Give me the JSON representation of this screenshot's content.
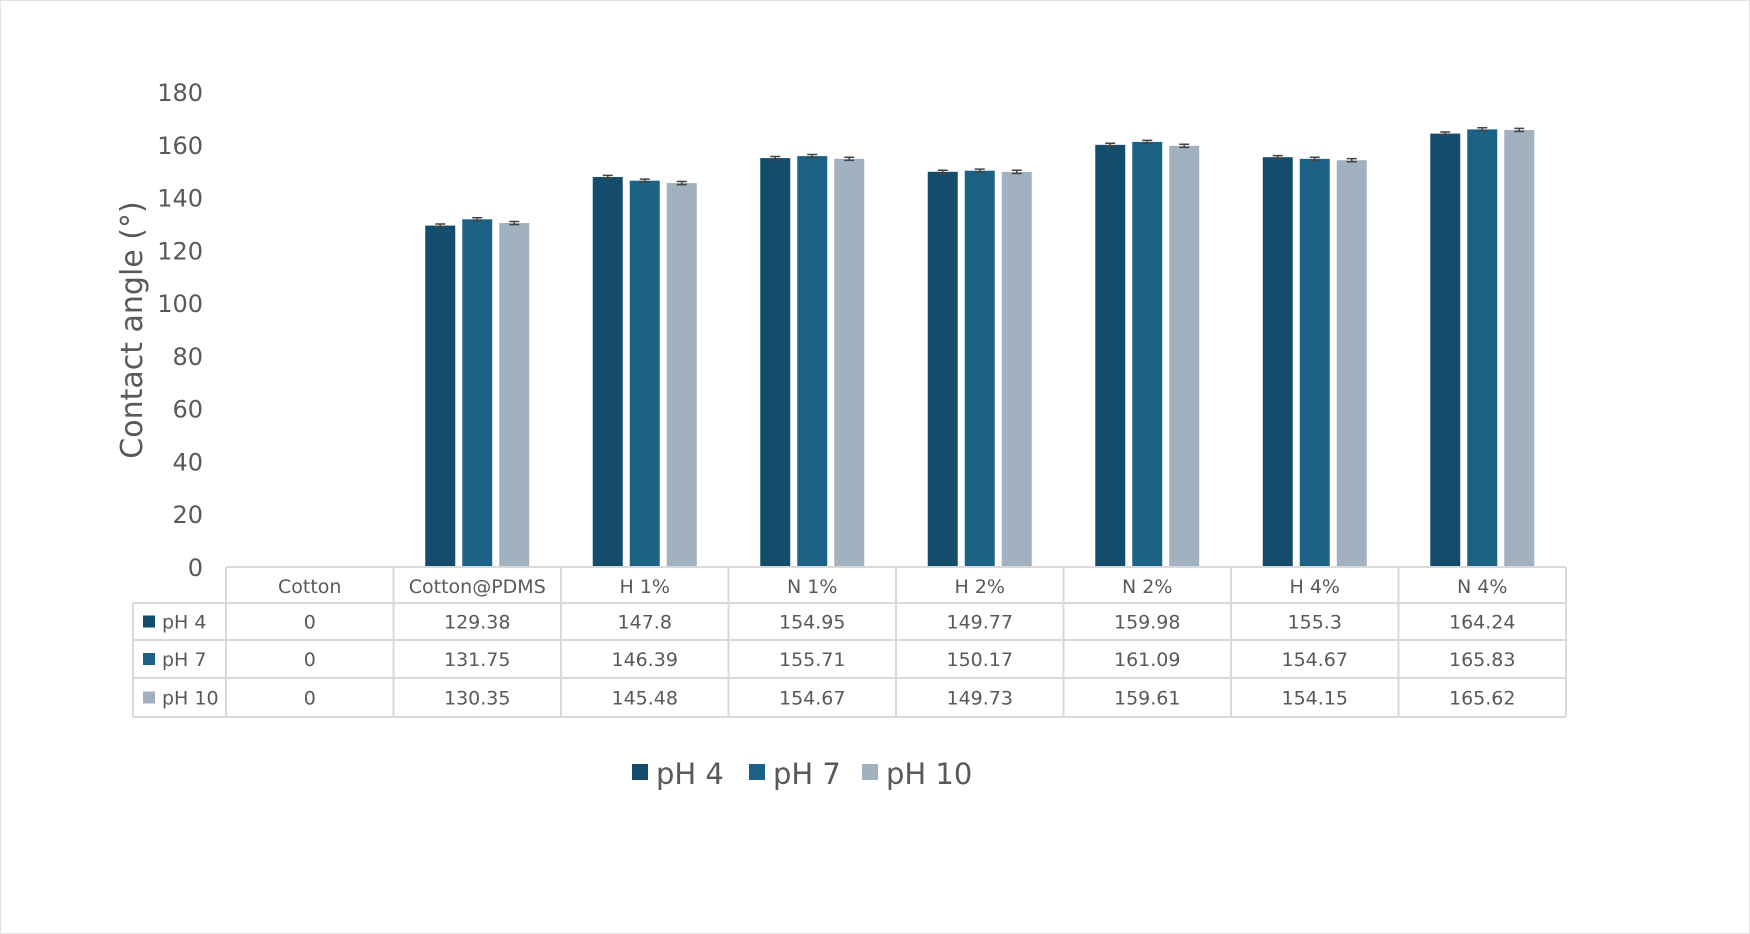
{
  "chart_data": {
    "type": "bar",
    "title": "",
    "xlabel": "",
    "ylabel": "Contact angle (°)",
    "ylim": [
      0,
      180
    ],
    "yticks": [
      0,
      20,
      40,
      60,
      80,
      100,
      120,
      140,
      160,
      180
    ],
    "grid": false,
    "legend_position": "bottom",
    "data_table": true,
    "error_bars": true,
    "categories": [
      "Cotton",
      "Cotton@PDMS",
      "H 1%",
      "N 1%",
      "H 2%",
      "N 2%",
      "H 4%",
      "N 4%"
    ],
    "series": [
      {
        "name": "pH 4",
        "color": "#134d6b",
        "values": [
          0,
          129.38,
          147.8,
          154.95,
          149.77,
          159.98,
          155.3,
          164.24
        ]
      },
      {
        "name": "pH 7",
        "color": "#1b6286",
        "values": [
          0,
          131.75,
          146.39,
          155.71,
          150.17,
          161.09,
          154.67,
          165.83
        ]
      },
      {
        "name": "pH 10",
        "color": "#a2b1bf",
        "values": [
          0,
          130.35,
          145.48,
          154.67,
          149.73,
          159.61,
          154.15,
          165.62
        ]
      }
    ],
    "table_values": [
      [
        "0",
        "129.38",
        "147.8",
        "154.95",
        "149.77",
        "159.98",
        "155.3",
        "164.24"
      ],
      [
        "0",
        "131.75",
        "146.39",
        "155.71",
        "150.17",
        "161.09",
        "154.67",
        "165.83"
      ],
      [
        "0",
        "130.35",
        "145.48",
        "154.67",
        "149.73",
        "159.61",
        "154.15",
        "165.62"
      ]
    ]
  }
}
